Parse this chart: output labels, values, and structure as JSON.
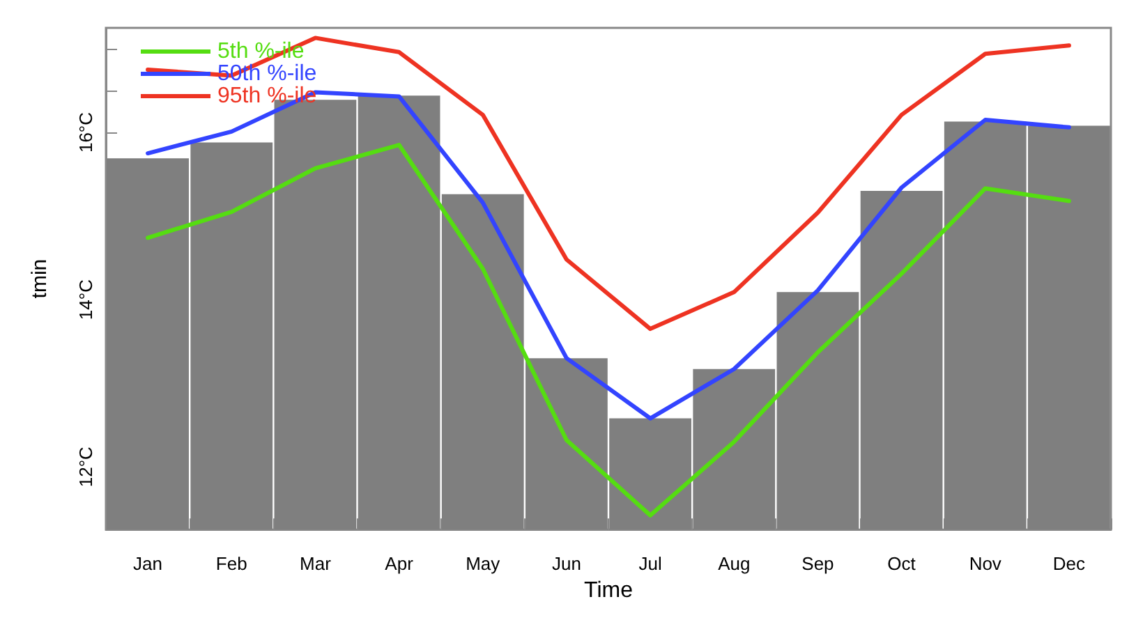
{
  "chart_data": {
    "type": "bar",
    "xlabel": "Time",
    "ylabel": "tmin",
    "categories": [
      "Jan",
      "Feb",
      "Mar",
      "Apr",
      "May",
      "Jun",
      "Jul",
      "Aug",
      "Sep",
      "Oct",
      "Nov",
      "Dec"
    ],
    "series": [
      {
        "color": "#7f7f7f",
        "values": [
          15.69,
          15.88,
          16.39,
          16.44,
          15.26,
          13.3,
          12.58,
          13.17,
          14.09,
          15.3,
          16.13,
          16.08
        ]
      },
      {
        "type": "line",
        "name": "5th %-ile",
        "color": "#55dd11",
        "values": [
          14.74,
          15.05,
          15.57,
          15.85,
          14.37,
          12.32,
          11.42,
          12.3,
          13.37,
          14.31,
          15.33,
          15.18
        ]
      },
      {
        "type": "line",
        "name": "50th %-ile",
        "color": "#3344ff",
        "values": [
          15.75,
          16.01,
          16.48,
          16.43,
          15.16,
          13.3,
          12.58,
          13.17,
          14.11,
          15.34,
          16.15,
          16.06
        ]
      },
      {
        "type": "line",
        "name": "95th %-ile",
        "color": "#ee3322",
        "values": [
          16.75,
          16.68,
          17.13,
          16.96,
          16.21,
          14.48,
          13.65,
          14.09,
          15.04,
          16.21,
          16.94,
          17.04
        ]
      }
    ],
    "ylim": [
      11.25,
      17.25
    ],
    "yticks": [
      {
        "value": 11.5,
        "label": null
      },
      {
        "value": 12,
        "label": "12°C"
      },
      {
        "value": 12.5,
        "label": null
      },
      {
        "value": 13,
        "label": null
      },
      {
        "value": 13.5,
        "label": null
      },
      {
        "value": 14,
        "label": "14°C"
      },
      {
        "value": 14.5,
        "label": null
      },
      {
        "value": 15,
        "label": null
      },
      {
        "value": 15.5,
        "label": null
      },
      {
        "value": 16,
        "label": "16°C"
      },
      {
        "value": 16.5,
        "label": null
      },
      {
        "value": 17,
        "label": null
      }
    ],
    "legend": "top left",
    "grid": false,
    "marker": "none",
    "line_style": "solid"
  }
}
